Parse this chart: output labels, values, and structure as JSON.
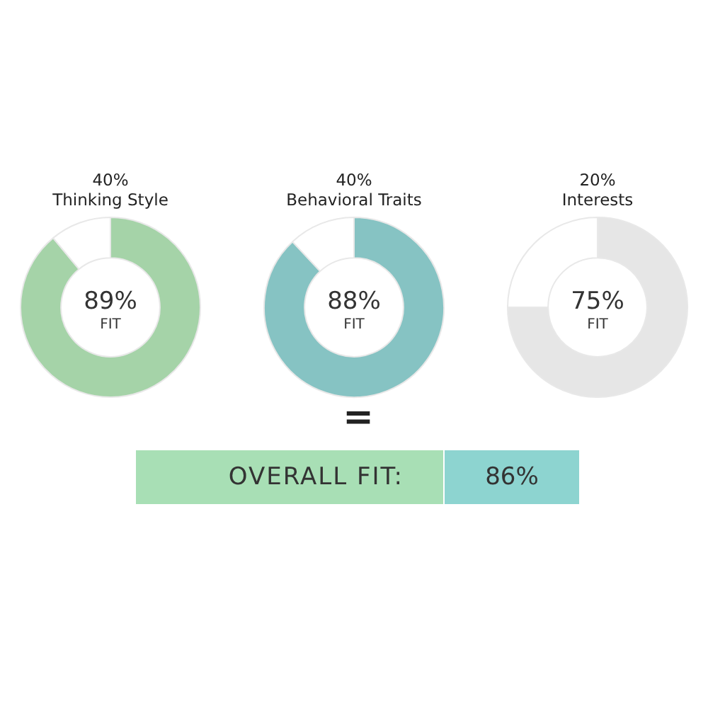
{
  "chart_data": [
    {
      "type": "donut",
      "title": "40%",
      "subtitle": "Thinking Style",
      "categories": [
        null,
        null
      ],
      "values": [
        89,
        11
      ],
      "colors": [
        "#a5d3a8",
        "#ffffff"
      ],
      "annotations": [
        "89%",
        "FIT"
      ]
    },
    {
      "type": "donut",
      "title": "40%",
      "subtitle": "Behavioral Traits",
      "categories": [
        null,
        null
      ],
      "values": [
        88,
        12
      ],
      "colors": [
        "#86c3c3",
        "#ffffff"
      ],
      "annotations": [
        "88%",
        "FIT"
      ]
    },
    {
      "type": "donut",
      "title": "20%",
      "subtitle": "Interests",
      "categories": [
        null,
        null
      ],
      "values": [
        75,
        25
      ],
      "colors": [
        "#e6e6e6",
        "#ffffff"
      ],
      "annotations": [
        "75%",
        "FIT"
      ]
    },
    {
      "type": "other",
      "annotations": [
        "=",
        "OVERALL FIT:",
        "86%"
      ],
      "colors": [
        "#a8dfb5",
        "#8dd4d0"
      ]
    }
  ]
}
